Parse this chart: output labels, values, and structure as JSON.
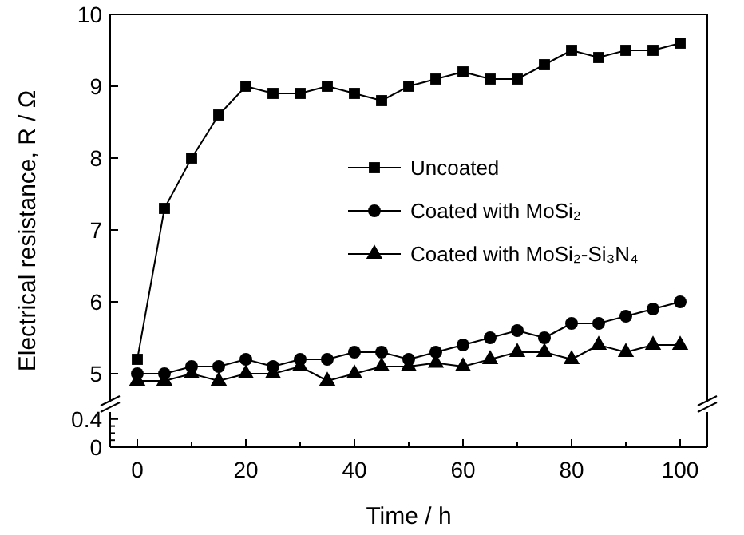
{
  "chart_data": [
    {
      "type": "line",
      "xlim": [
        -5,
        105
      ],
      "ylim": [
        4.6,
        10
      ],
      "yticks": [
        5,
        6,
        7,
        8,
        9,
        10
      ],
      "tick_labels": "y",
      "ylabel": "Electrical resistance, R / Ω",
      "legend": "right",
      "x": [
        0,
        5,
        10,
        15,
        20,
        25,
        30,
        35,
        40,
        45,
        50,
        55,
        60,
        65,
        70,
        75,
        80,
        85,
        90,
        95,
        100
      ],
      "series": [
        {
          "name": "Uncoated",
          "color": "#000000",
          "marker": "square",
          "values": [
            5.2,
            7.3,
            8.0,
            8.6,
            9.0,
            8.9,
            8.9,
            9.0,
            8.9,
            8.8,
            9.0,
            9.1,
            9.2,
            9.1,
            9.1,
            9.3,
            9.5,
            9.4,
            9.5,
            9.5,
            9.6
          ]
        },
        {
          "name": "Coated with MoSi₂",
          "color": "#000000",
          "marker": "circle",
          "values": [
            5.0,
            5.0,
            5.1,
            5.1,
            5.2,
            5.1,
            5.2,
            5.2,
            5.3,
            5.3,
            5.2,
            5.3,
            5.4,
            5.5,
            5.6,
            5.5,
            5.7,
            5.7,
            5.8,
            5.9,
            6.0
          ]
        },
        {
          "name": "Coated with MoSi₂-Si₃N₄",
          "color": "#000000",
          "marker": "triangle",
          "values": [
            4.9,
            4.9,
            5.0,
            4.9,
            5.0,
            5.0,
            5.1,
            4.9,
            5.0,
            5.1,
            5.1,
            5.15,
            5.1,
            5.2,
            5.3,
            5.3,
            5.2,
            5.4,
            5.3,
            5.4,
            5.4
          ]
        }
      ]
    },
    {
      "type": "line",
      "xlim": [
        -5,
        105
      ],
      "xticks": [
        0,
        {
          "value": 10,
          "label": null
        },
        20,
        {
          "value": 30,
          "label": null
        },
        40,
        {
          "value": 50,
          "label": null
        },
        60,
        {
          "value": 70,
          "label": null
        },
        80,
        {
          "value": 90,
          "label": null
        },
        100
      ],
      "ylim": [
        0,
        0.5
      ],
      "yticks": [
        0,
        {
          "value": 0.1,
          "label": null
        },
        {
          "value": 0.2,
          "label": null
        },
        {
          "value": 0.3,
          "label": null
        },
        0.4
      ],
      "xlabel": "Time / h"
    }
  ]
}
